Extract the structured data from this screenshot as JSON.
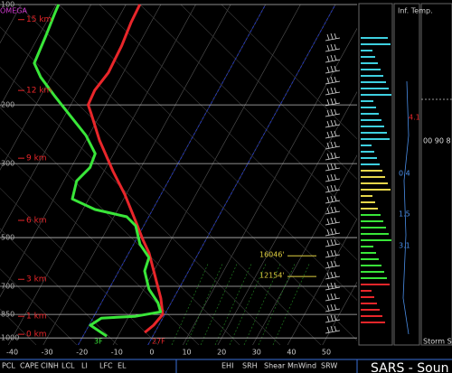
{
  "chart_data": {
    "type": "skewt",
    "omega_label": "OMEGA",
    "xlim": [
      -43.5,
      58.8
    ],
    "xticks": [
      -40,
      -30,
      -20,
      -10,
      0,
      10,
      20,
      30,
      40,
      50
    ],
    "ylim": [
      1050,
      100
    ],
    "yticks": [
      100,
      200,
      300,
      500,
      700,
      850,
      1000
    ],
    "log_y": true,
    "grid": true,
    "height_labels": [
      {
        "value": 111,
        "label": "15 km"
      },
      {
        "value": 181,
        "label": "12 km"
      },
      {
        "value": 289,
        "label": "9 km"
      },
      {
        "value": 444,
        "label": "6 km"
      },
      {
        "value": 667,
        "label": "3 km"
      },
      {
        "value": 861,
        "label": "1 km"
      },
      {
        "value": 975,
        "label": "0 km"
      }
    ],
    "level_labels": [
      {
        "value": 567,
        "label": "16046'"
      },
      {
        "value": 654,
        "label": "12154'"
      }
    ],
    "surface_dewpoint_label": "3F",
    "surface_temp_label": "27F",
    "series": [
      {
        "color": "#e8262a",
        "pressure": [
          963,
          916,
          850,
          760,
          630,
          556,
          507,
          447,
          371,
          317,
          255,
          211,
          200,
          181,
          160,
          133,
          113,
          100
        ],
        "values": [
          -2.9,
          -1.5,
          -0.6,
          -3.7,
          -10,
          -14.2,
          -18.1,
          -23,
          -30.4,
          -37.3,
          -46.2,
          -53,
          -55,
          -55.4,
          -54.3,
          -54.7,
          -55.7,
          -56
        ]
      },
      {
        "color": "#39e639",
        "pressure": [
          988,
          916,
          872,
          861,
          835,
          784,
          714,
          630,
          574,
          523,
          461,
          433,
          412,
          383,
          338,
          308,
          280,
          247,
          211,
          187,
          165,
          150,
          124,
          106,
          100
        ],
        "values": [
          -13.2,
          -19.6,
          -17.6,
          -8.1,
          -1.6,
          -3.8,
          -8.5,
          -12.6,
          -13.5,
          -18.2,
          -22.3,
          -26.3,
          -36.5,
          -44.7,
          -46.3,
          -44.6,
          -45.3,
          -50.8,
          -59.6,
          -66.3,
          -73,
          -77,
          -78,
          -79,
          -79.3
        ]
      }
    ]
  },
  "inferred_temp": {
    "title": "Inf.\nTemp.",
    "labels": [
      "4.1",
      "0.4",
      "1.5",
      "3.1"
    ]
  },
  "hodograph": {
    "axis_label": "00  90  8",
    "footer": "Storm Sli"
  },
  "table": {
    "left_headers": [
      "PCL",
      "CAPE",
      "CINH",
      "LCL",
      "LI",
      "LFC",
      "EL"
    ],
    "right_headers": [
      "EHI",
      "SRH",
      "Shear",
      "MnWind",
      "SRW"
    ],
    "title": "SARS - Soun"
  }
}
